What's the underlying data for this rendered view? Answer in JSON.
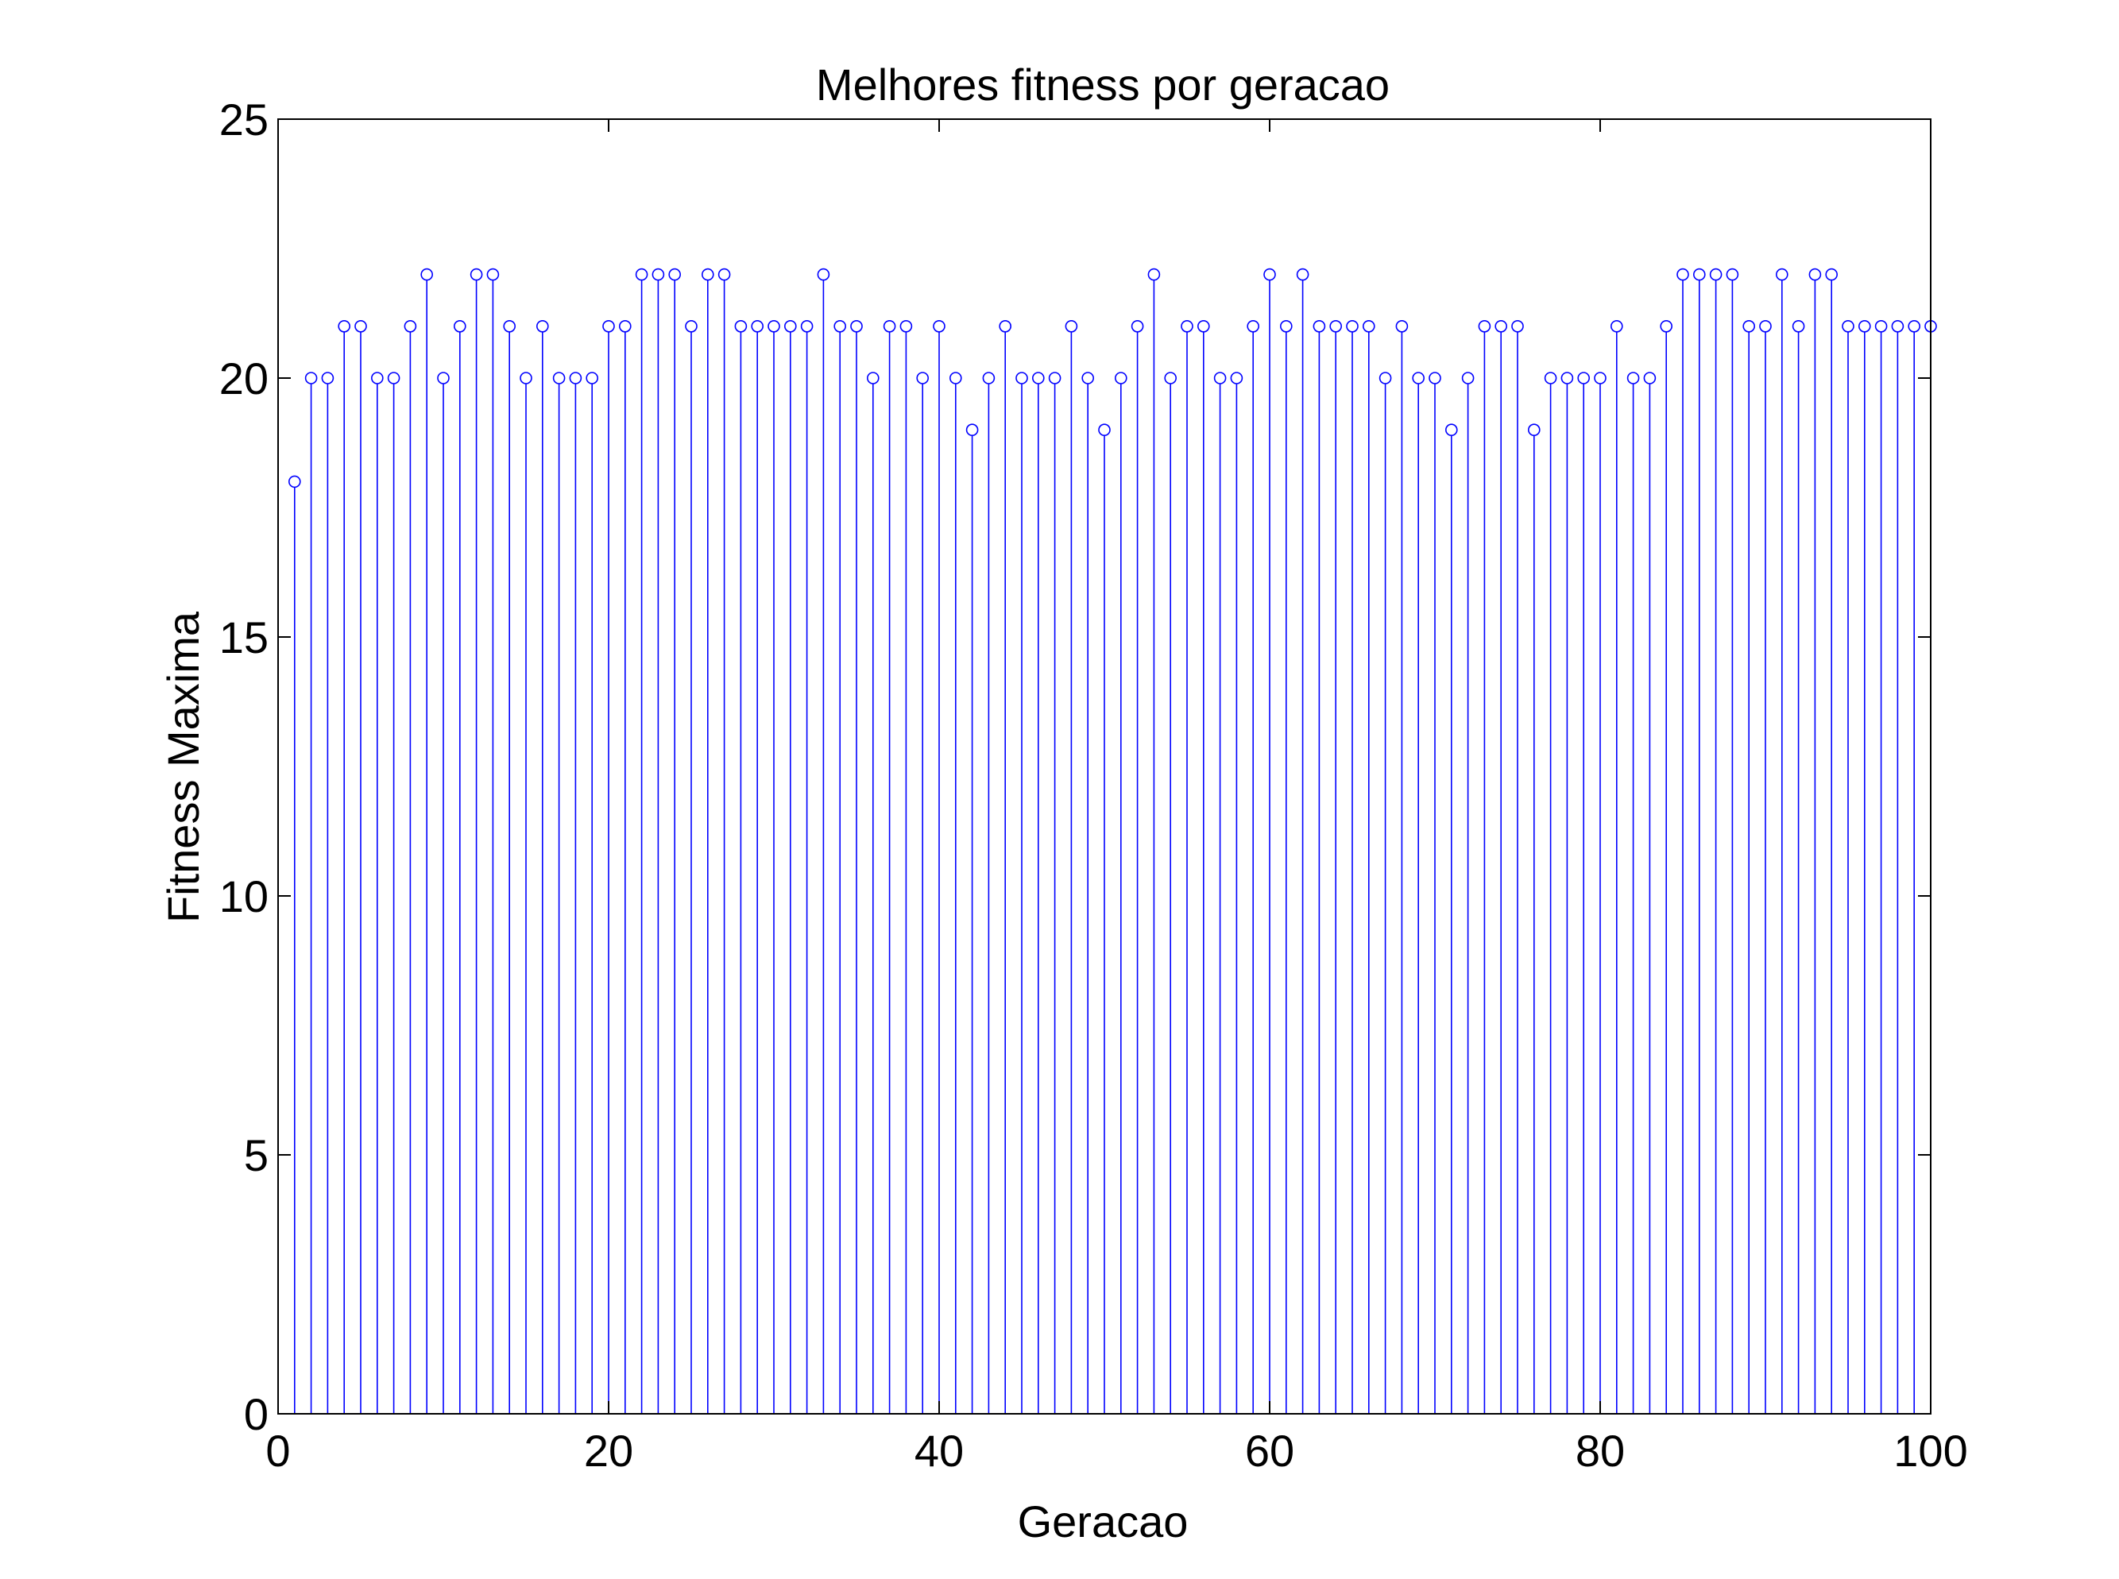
{
  "chart_data": {
    "type": "stem",
    "title": "Melhores fitness por geracao",
    "xlabel": "Geracao",
    "ylabel": "Fitness Maxima",
    "xlim": [
      0,
      100
    ],
    "ylim": [
      0,
      25
    ],
    "xticks": [
      0,
      20,
      40,
      60,
      80,
      100
    ],
    "yticks": [
      0,
      5,
      10,
      15,
      20,
      25
    ],
    "grid": false,
    "legend": "none",
    "series_color": "#0000ff",
    "x": [
      1,
      2,
      3,
      4,
      5,
      6,
      7,
      8,
      9,
      10,
      11,
      12,
      13,
      14,
      15,
      16,
      17,
      18,
      19,
      20,
      21,
      22,
      23,
      24,
      25,
      26,
      27,
      28,
      29,
      30,
      31,
      32,
      33,
      34,
      35,
      36,
      37,
      38,
      39,
      40,
      41,
      42,
      43,
      44,
      45,
      46,
      47,
      48,
      49,
      50,
      51,
      52,
      53,
      54,
      55,
      56,
      57,
      58,
      59,
      60,
      61,
      62,
      63,
      64,
      65,
      66,
      67,
      68,
      69,
      70,
      71,
      72,
      73,
      74,
      75,
      76,
      77,
      78,
      79,
      80,
      81,
      82,
      83,
      84,
      85,
      86,
      87,
      88,
      89,
      90,
      91,
      92,
      93,
      94,
      95,
      96,
      97,
      98,
      99,
      100
    ],
    "values": [
      18,
      20,
      20,
      21,
      21,
      20,
      20,
      21,
      22,
      20,
      21,
      22,
      22,
      21,
      20,
      21,
      20,
      20,
      20,
      21,
      21,
      22,
      22,
      22,
      21,
      22,
      22,
      21,
      21,
      21,
      21,
      21,
      22,
      21,
      21,
      20,
      21,
      21,
      20,
      21,
      20,
      19,
      20,
      21,
      20,
      20,
      20,
      21,
      20,
      19,
      20,
      21,
      22,
      20,
      21,
      21,
      20,
      20,
      21,
      22,
      21,
      22,
      21,
      21,
      21,
      21,
      20,
      21,
      20,
      20,
      19,
      20,
      21,
      21,
      21,
      19,
      20,
      20,
      20,
      20,
      21,
      20,
      20,
      21,
      22,
      22,
      22,
      22,
      21,
      21,
      22,
      21,
      22,
      22,
      21,
      21,
      21,
      21,
      21,
      21
    ]
  }
}
